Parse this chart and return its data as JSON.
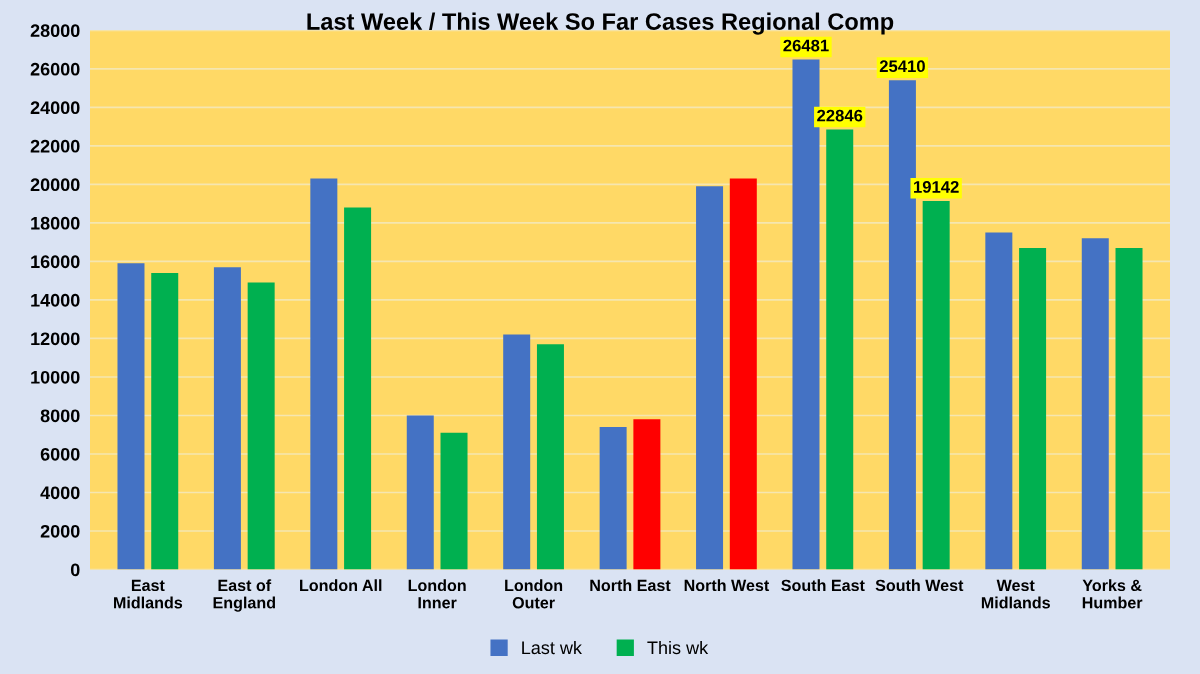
{
  "chart_data": {
    "type": "bar",
    "title": "Last Week / This Week So Far Cases Regional Comp",
    "categories": [
      "East\nMidlands",
      "East of\nEngland",
      "London All",
      "London\nInner",
      "London\nOuter",
      "North East",
      "North West",
      "South East",
      "South West",
      "West\nMidlands",
      "Yorks &\nHumber"
    ],
    "series": [
      {
        "name": "Last wk",
        "color": "#4472c4",
        "values": [
          15900,
          15700,
          20300,
          8000,
          12200,
          7400,
          19900,
          26481,
          25410,
          17500,
          17200
        ],
        "value_labels": [
          null,
          null,
          null,
          null,
          null,
          null,
          null,
          "26481",
          "25410",
          null,
          null
        ]
      },
      {
        "name": "This wk",
        "color": "#00b050",
        "colors": [
          "#00b050",
          "#00b050",
          "#00b050",
          "#00b050",
          "#00b050",
          "#ff0000",
          "#ff0000",
          "#00b050",
          "#00b050",
          "#00b050",
          "#00b050"
        ],
        "values": [
          15400,
          14900,
          18800,
          7100,
          11700,
          7800,
          20300,
          22846,
          19142,
          16700,
          16700
        ],
        "value_labels": [
          null,
          null,
          null,
          null,
          null,
          null,
          null,
          "22846",
          "19142",
          null,
          null
        ]
      }
    ],
    "ylim": [
      0,
      28000
    ],
    "yticks": [
      0,
      2000,
      4000,
      6000,
      8000,
      10000,
      12000,
      14000,
      16000,
      18000,
      20000,
      22000,
      24000,
      26000,
      28000
    ],
    "grid": "y",
    "legend": "bottom"
  }
}
